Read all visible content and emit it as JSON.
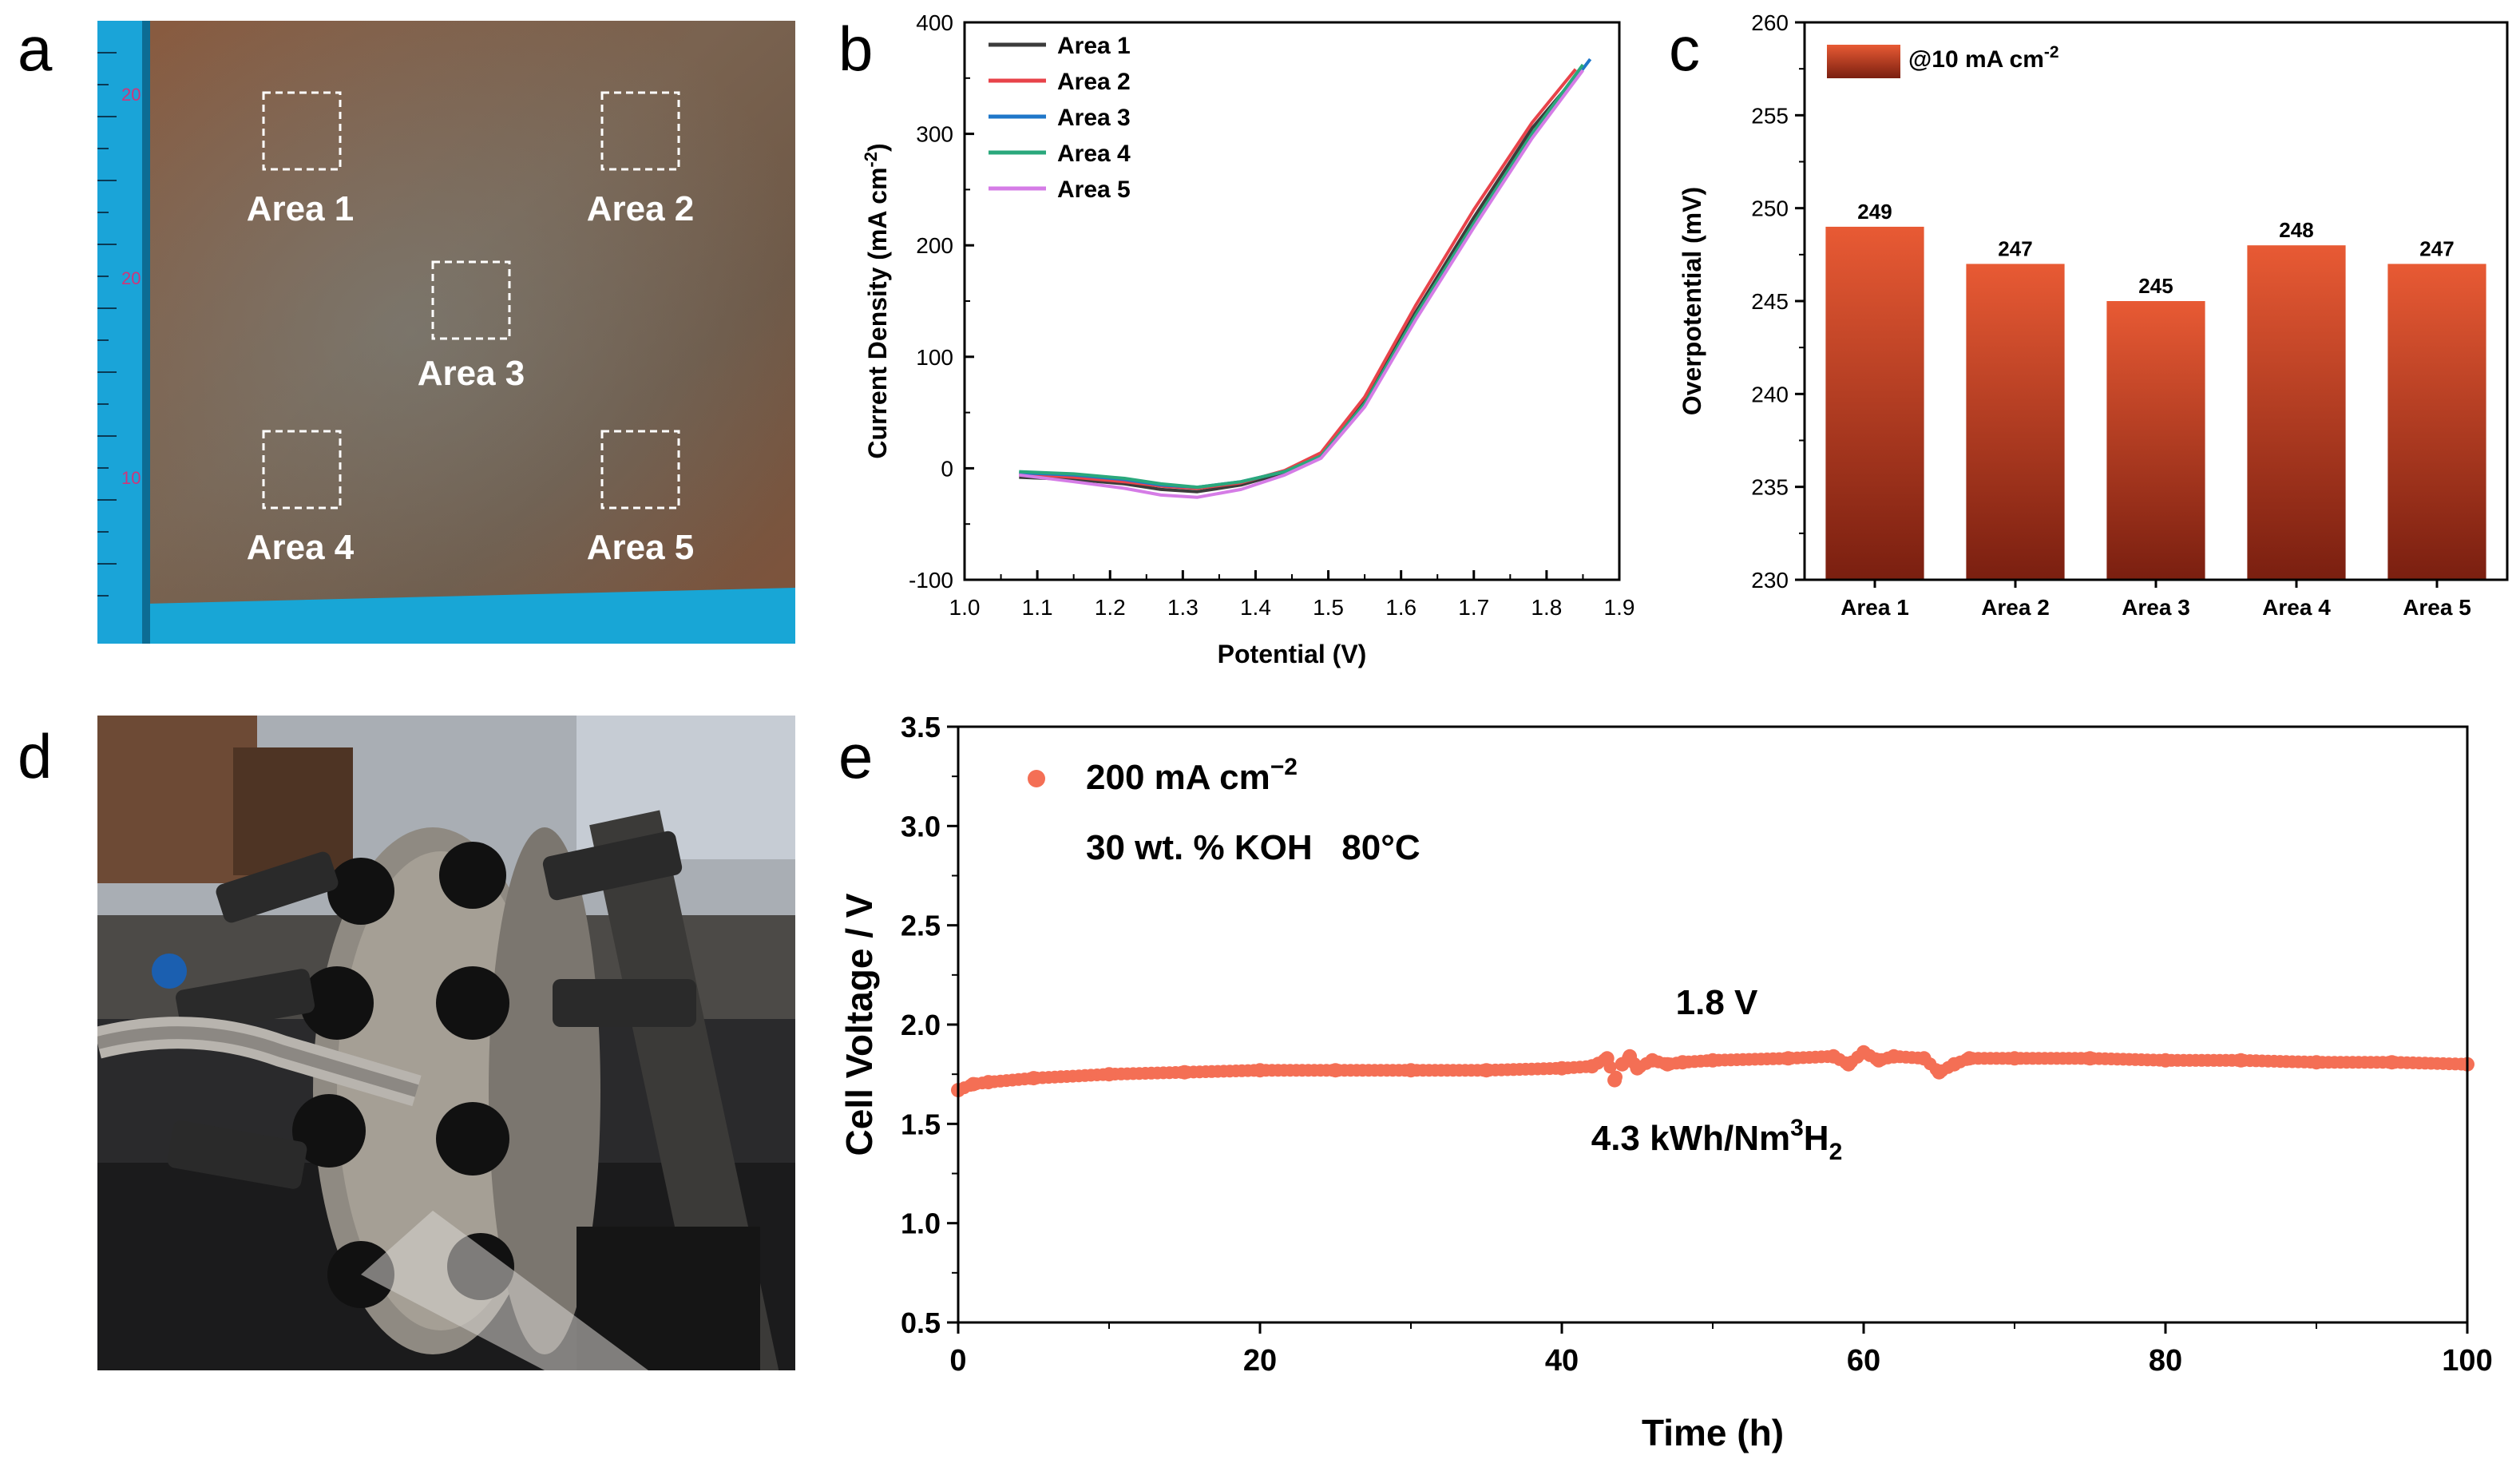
{
  "panel_labels": {
    "a": "a",
    "b": "b",
    "c": "c",
    "d": "d",
    "e": "e"
  },
  "panel_a": {
    "areas": [
      "Area 1",
      "Area 2",
      "Area 3",
      "Area 4",
      "Area 5"
    ],
    "ruler_marks": [
      "20",
      "20",
      "10"
    ]
  },
  "chart_data": [
    {
      "panel": "b",
      "type": "line",
      "xlabel": "Potential (V)",
      "ylabel": "Current Density (mA cm",
      "ylabel_sup": "-2",
      "ylabel_end": ")",
      "xlim": [
        1.0,
        1.9
      ],
      "ylim": [
        -100,
        400
      ],
      "xticks": [
        "1.0",
        "1.1",
        "1.2",
        "1.3",
        "1.4",
        "1.5",
        "1.6",
        "1.7",
        "1.8",
        "1.9"
      ],
      "yticks": [
        "-100",
        "0",
        "100",
        "200",
        "300",
        "400"
      ],
      "series": [
        {
          "name": "Area 1",
          "color": "#3c3c3c",
          "x": [
            1.075,
            1.15,
            1.22,
            1.27,
            1.32,
            1.38,
            1.44,
            1.49,
            1.55,
            1.62,
            1.7,
            1.78,
            1.845
          ],
          "y": [
            -8,
            -10,
            -14,
            -19,
            -21,
            -15,
            -4,
            12,
            60,
            140,
            225,
            305,
            355
          ]
        },
        {
          "name": "Area 2",
          "color": "#e8434a",
          "x": [
            1.075,
            1.15,
            1.22,
            1.27,
            1.32,
            1.38,
            1.44,
            1.49,
            1.55,
            1.62,
            1.7,
            1.78,
            1.84
          ],
          "y": [
            -5,
            -8,
            -12,
            -16,
            -18,
            -13,
            -2,
            14,
            64,
            146,
            232,
            310,
            358
          ]
        },
        {
          "name": "Area 3",
          "color": "#1f77c9",
          "x": [
            1.075,
            1.15,
            1.22,
            1.27,
            1.32,
            1.38,
            1.44,
            1.49,
            1.55,
            1.62,
            1.7,
            1.78,
            1.86
          ],
          "y": [
            -4,
            -6,
            -10,
            -15,
            -17,
            -12,
            -3,
            10,
            56,
            134,
            218,
            298,
            367
          ]
        },
        {
          "name": "Area 4",
          "color": "#2aa87c",
          "x": [
            1.075,
            1.15,
            1.22,
            1.27,
            1.32,
            1.38,
            1.44,
            1.49,
            1.55,
            1.62,
            1.7,
            1.78,
            1.85
          ],
          "y": [
            -3,
            -5,
            -9,
            -14,
            -17,
            -12,
            -3,
            11,
            58,
            137,
            220,
            300,
            362
          ]
        },
        {
          "name": "Area 5",
          "color": "#d57ce6",
          "x": [
            1.075,
            1.15,
            1.22,
            1.27,
            1.32,
            1.38,
            1.44,
            1.49,
            1.55,
            1.62,
            1.7,
            1.78,
            1.85
          ],
          "y": [
            -6,
            -12,
            -18,
            -24,
            -26,
            -19,
            -6,
            9,
            55,
            133,
            216,
            296,
            357
          ]
        }
      ]
    },
    {
      "panel": "c",
      "type": "bar",
      "ylabel": "Overpotential (mV)",
      "ylim": [
        230,
        260
      ],
      "yticks": [
        "230",
        "235",
        "240",
        "245",
        "250",
        "255",
        "260"
      ],
      "categories": [
        "Area 1",
        "Area 2",
        "Area 3",
        "Area 4",
        "Area 5"
      ],
      "values": [
        249,
        247,
        245,
        248,
        247
      ],
      "data_labels": [
        "249",
        "247",
        "245",
        "248",
        "247"
      ],
      "legend": {
        "text": "@10 mA cm",
        "sup": "-2"
      },
      "bar_color_top": "#e85a34",
      "bar_color_bottom": "#7a1f10"
    },
    {
      "panel": "e",
      "type": "scatter",
      "xlabel": "Time (h)",
      "ylabel": "Cell Voltage / V",
      "xlim": [
        0,
        100
      ],
      "ylim": [
        0.5,
        3.5
      ],
      "xticks": [
        "0",
        "20",
        "40",
        "60",
        "80",
        "100"
      ],
      "yticks": [
        "0.5",
        "1.0",
        "1.5",
        "2.0",
        "2.5",
        "3.0",
        "3.5"
      ],
      "marker_color": "#f46f55",
      "legend": {
        "text": "200 mA cm",
        "sup": "−2"
      },
      "condition": "30 wt. % KOH   80°C",
      "annotation_voltage": "1.8 V",
      "annotation_energy": {
        "text": "4.3 kWh/Nm",
        "sup": "3",
        "tail": "H",
        "sub": "2"
      },
      "series": [
        {
          "name": "Cell voltage",
          "x": [
            0,
            1,
            2,
            5,
            10,
            15,
            20,
            25,
            30,
            35,
            40,
            42,
            43,
            43.5,
            44,
            44.5,
            45,
            46,
            47,
            48,
            50,
            55,
            58,
            59,
            60,
            61,
            62,
            64,
            65,
            66,
            67,
            70,
            75,
            80,
            85,
            90,
            95,
            100
          ],
          "y": [
            1.67,
            1.7,
            1.71,
            1.73,
            1.75,
            1.76,
            1.77,
            1.77,
            1.77,
            1.77,
            1.78,
            1.79,
            1.83,
            1.72,
            1.8,
            1.84,
            1.78,
            1.82,
            1.8,
            1.81,
            1.82,
            1.83,
            1.84,
            1.8,
            1.86,
            1.82,
            1.84,
            1.83,
            1.76,
            1.8,
            1.83,
            1.83,
            1.83,
            1.82,
            1.82,
            1.81,
            1.81,
            1.8
          ]
        }
      ]
    }
  ]
}
